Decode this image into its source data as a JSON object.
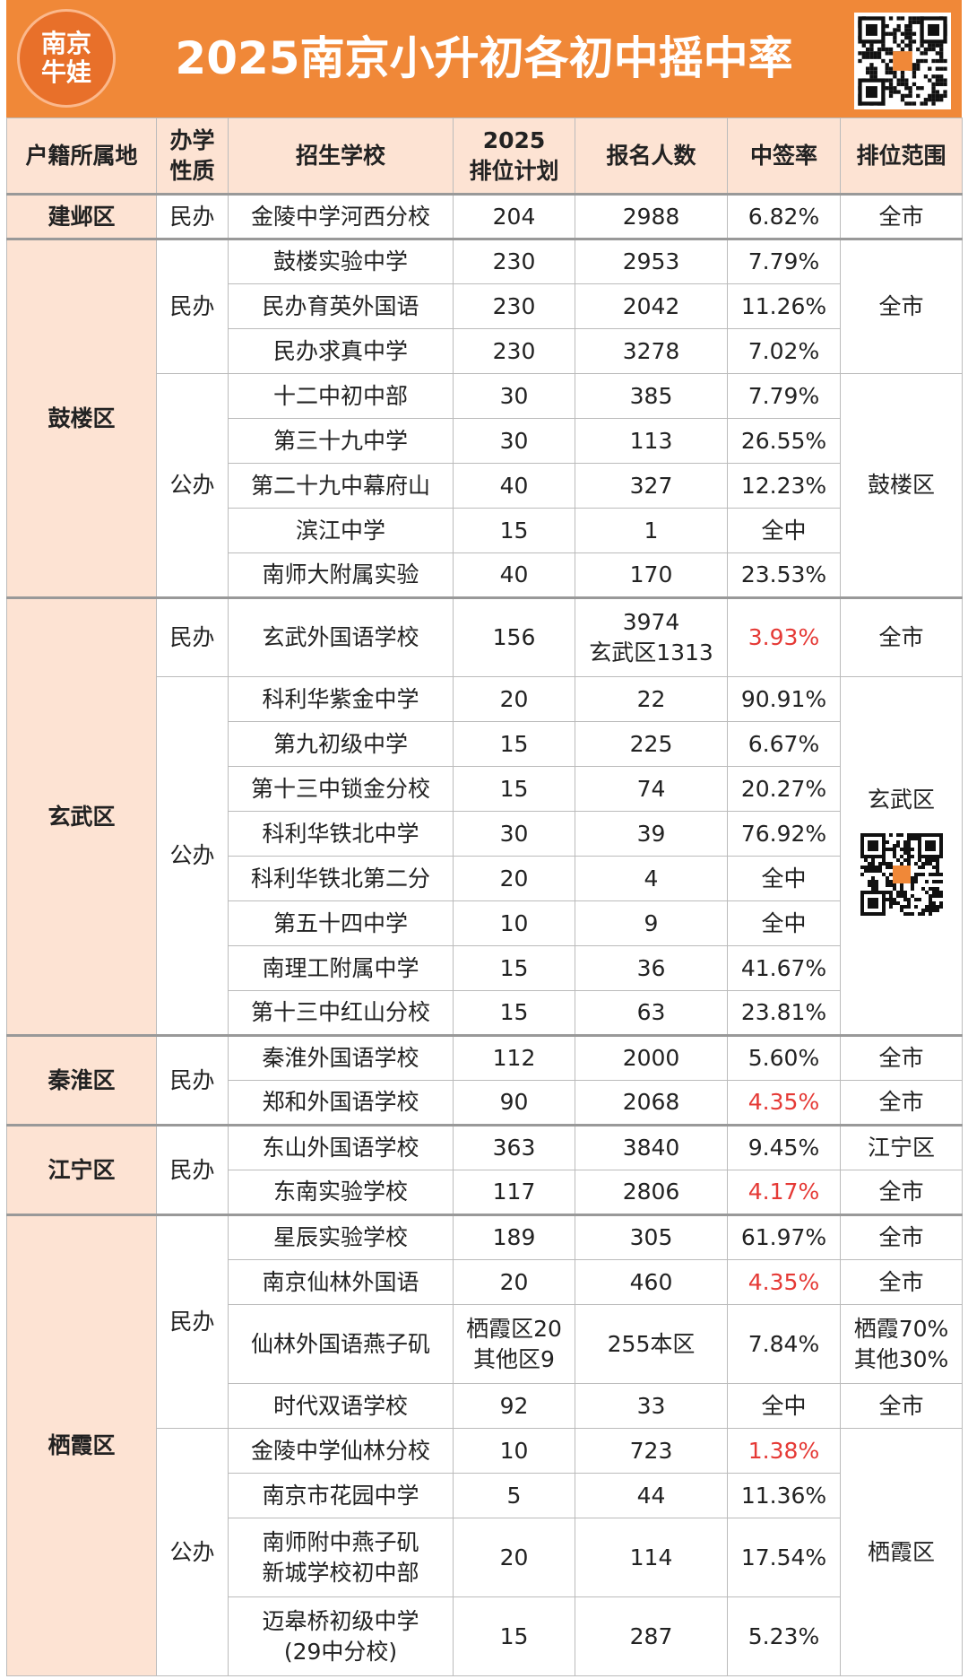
{
  "header": {
    "title": "2025南京小升初各初中摇中率",
    "logo": "南京\n牛娃"
  },
  "table": {
    "columns": [
      "户籍所属地",
      "办学\n性质",
      "招生学校",
      "2025\n排位计划",
      "报名人数",
      "中签率",
      "排位范围"
    ],
    "districts": [
      {
        "name": "建邺区",
        "groups": [
          {
            "type": "民办",
            "schools": [
              {
                "name": "金陵中学河西分校",
                "plan": "204",
                "applicants": "2988",
                "rate": "6.82%",
                "range": "全市"
              }
            ]
          }
        ]
      },
      {
        "name": "鼓楼区",
        "groups": [
          {
            "type": "民办",
            "range": "全市",
            "schools": [
              {
                "name": "鼓楼实验中学",
                "plan": "230",
                "applicants": "2953",
                "rate": "7.79%"
              },
              {
                "name": "民办育英外国语",
                "plan": "230",
                "applicants": "2042",
                "rate": "11.26%"
              },
              {
                "name": "民办求真中学",
                "plan": "230",
                "applicants": "3278",
                "rate": "7.02%"
              }
            ]
          },
          {
            "type": "公办",
            "range": "鼓楼区",
            "schools": [
              {
                "name": "十二中初中部",
                "plan": "30",
                "applicants": "385",
                "rate": "7.79%"
              },
              {
                "name": "第三十九中学",
                "plan": "30",
                "applicants": "113",
                "rate": "26.55%"
              },
              {
                "name": "第二十九中幕府山",
                "plan": "40",
                "applicants": "327",
                "rate": "12.23%"
              },
              {
                "name": "滨江中学",
                "plan": "15",
                "applicants": "1",
                "rate": "全中"
              },
              {
                "name": "南师大附属实验",
                "plan": "40",
                "applicants": "170",
                "rate": "23.53%"
              }
            ]
          }
        ]
      },
      {
        "name": "玄武区",
        "groups": [
          {
            "type": "民办",
            "schools": [
              {
                "name": "玄武外国语学校",
                "plan": "156",
                "applicants": "3974\n玄武区1313",
                "rate": "3.93%",
                "rate_color": "#e53935",
                "range": "全市"
              }
            ]
          },
          {
            "type": "公办",
            "range": "玄武区",
            "qr": true,
            "schools": [
              {
                "name": "科利华紫金中学",
                "plan": "20",
                "applicants": "22",
                "rate": "90.91%"
              },
              {
                "name": "第九初级中学",
                "plan": "15",
                "applicants": "225",
                "rate": "6.67%"
              },
              {
                "name": "第十三中锁金分校",
                "plan": "15",
                "applicants": "74",
                "rate": "20.27%"
              },
              {
                "name": "科利华铁北中学",
                "plan": "30",
                "applicants": "39",
                "rate": "76.92%"
              },
              {
                "name": "科利华铁北第二分",
                "plan": "20",
                "applicants": "4",
                "rate": "全中"
              },
              {
                "name": "第五十四中学",
                "plan": "10",
                "applicants": "9",
                "rate": "全中"
              },
              {
                "name": "南理工附属中学",
                "plan": "15",
                "applicants": "36",
                "rate": "41.67%"
              },
              {
                "name": "第十三中红山分校",
                "plan": "15",
                "applicants": "63",
                "rate": "23.81%"
              }
            ]
          }
        ]
      },
      {
        "name": "秦淮区",
        "groups": [
          {
            "type": "民办",
            "schools": [
              {
                "name": "秦淮外国语学校",
                "plan": "112",
                "applicants": "2000",
                "rate": "5.60%",
                "range": "全市"
              },
              {
                "name": "郑和外国语学校",
                "plan": "90",
                "applicants": "2068",
                "rate": "4.35%",
                "rate_color": "#e53935",
                "range": "全市"
              }
            ]
          }
        ]
      },
      {
        "name": "江宁区",
        "groups": [
          {
            "type": "民办",
            "schools": [
              {
                "name": "东山外国语学校",
                "plan": "363",
                "applicants": "3840",
                "rate": "9.45%",
                "range": "江宁区"
              },
              {
                "name": "东南实验学校",
                "plan": "117",
                "applicants": "2806",
                "rate": "4.17%",
                "rate_color": "#e53935",
                "range": "全市"
              }
            ]
          }
        ]
      },
      {
        "name": "栖霞区",
        "groups": [
          {
            "type": "民办",
            "schools": [
              {
                "name": "星辰实验学校",
                "plan": "189",
                "applicants": "305",
                "rate": "61.97%",
                "range": "全市"
              },
              {
                "name": "南京仙林外国语",
                "plan": "20",
                "applicants": "460",
                "rate": "4.35%",
                "rate_color": "#e53935",
                "range": "全市"
              },
              {
                "name": "仙林外国语燕子矶",
                "plan": "栖霞区20\n其他区9",
                "applicants": "255本区",
                "rate": "7.84%",
                "range": "栖霞70%\n其他30%"
              },
              {
                "name": "时代双语学校",
                "plan": "92",
                "applicants": "33",
                "rate": "全中",
                "range": "全市"
              }
            ]
          },
          {
            "type": "公办",
            "range": "栖霞区",
            "schools": [
              {
                "name": "金陵中学仙林分校",
                "plan": "10",
                "applicants": "723",
                "rate": "1.38%",
                "rate_color": "#e53935"
              },
              {
                "name": "南京市花园中学",
                "plan": "5",
                "applicants": "44",
                "rate": "11.36%"
              },
              {
                "name": "南师附中燕子矶\n新城学校初中部",
                "plan": "20",
                "applicants": "114",
                "rate": "17.54%"
              },
              {
                "name": "迈皋桥初级中学\n(29中分校)",
                "plan": "15",
                "applicants": "287",
                "rate": "5.23%"
              }
            ]
          }
        ]
      }
    ]
  }
}
